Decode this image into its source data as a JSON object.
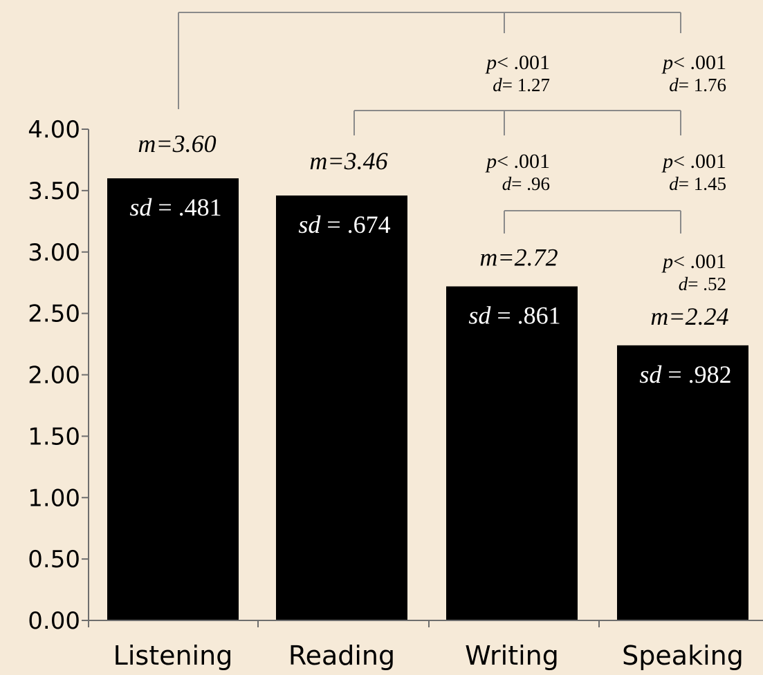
{
  "colors": {
    "background": "#f6ead8",
    "bar": "#000000",
    "axis": "#6e6e6e",
    "bracket": "#8a8a8a",
    "text": "#000000",
    "bar_text": "#ffffff"
  },
  "chart_data": {
    "type": "bar",
    "categories": [
      "Listening",
      "Reading",
      "Writing",
      "Speaking"
    ],
    "values": [
      3.6,
      3.46,
      2.72,
      2.24
    ],
    "ylim": [
      0,
      4
    ],
    "yticks": [
      "0.00",
      "0.50",
      "1.00",
      "1.50",
      "2.00",
      "2.50",
      "3.00",
      "3.50",
      "4.00"
    ],
    "grid": false,
    "title": "",
    "xlabel": "",
    "ylabel": "",
    "bar_labels": [
      {
        "mean": "m=3.60",
        "sd_prefix": "sd",
        "sd_value": " = .481"
      },
      {
        "mean": "m=3.46",
        "sd_prefix": "sd",
        "sd_value": " = .674"
      },
      {
        "mean": "m=2.72",
        "sd_prefix": "sd",
        "sd_value": " = .861"
      },
      {
        "mean": "m=2.24",
        "sd_prefix": "sd",
        "sd_value": " = .982"
      }
    ],
    "comparisons": [
      {
        "from": "Listening",
        "to": "Writing",
        "p": "< .001",
        "d": "= 1.27"
      },
      {
        "from": "Listening",
        "to": "Speaking",
        "p": "< .001",
        "d": "= 1.76"
      },
      {
        "from": "Reading",
        "to": "Writing",
        "p": "< .001",
        "d": "= .96"
      },
      {
        "from": "Reading",
        "to": "Speaking",
        "p": "< .001",
        "d": "= 1.45"
      },
      {
        "from": "Writing",
        "to": "Speaking",
        "p": "< .001",
        "d": "= .52"
      }
    ],
    "stat_letters": {
      "p": "p",
      "d": "d"
    }
  }
}
